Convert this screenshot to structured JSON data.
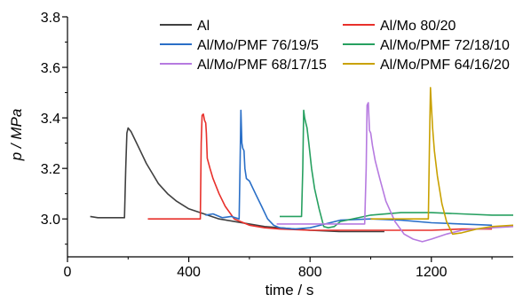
{
  "chart_data": {
    "type": "line",
    "title": "",
    "xlabel": "time / s",
    "ylabel": "p / MPa",
    "xlim": [
      0,
      1470
    ],
    "ylim": [
      2.85,
      3.8
    ],
    "xticks": [
      0,
      400,
      800,
      1200
    ],
    "yticks": [
      3.0,
      3.2,
      3.4,
      3.6,
      3.8
    ],
    "xtick_labels": [
      "0",
      "400",
      "800",
      "1200"
    ],
    "ytick_labels": [
      "3.0",
      "3.2",
      "3.4",
      "3.6",
      "3.8"
    ],
    "grid": false,
    "legend_position": "top",
    "series": [
      {
        "name": "Al",
        "color": "#404040",
        "x": [
          75,
          100,
          140,
          188,
          192,
          196,
          200,
          210,
          220,
          240,
          260,
          280,
          300,
          330,
          360,
          400,
          450,
          500,
          550,
          600,
          650,
          700,
          800,
          900,
          1000,
          1045
        ],
        "y": [
          3.01,
          3.005,
          3.005,
          3.005,
          3.2,
          3.34,
          3.36,
          3.345,
          3.32,
          3.27,
          3.22,
          3.18,
          3.14,
          3.1,
          3.07,
          3.04,
          3.02,
          3.0,
          2.99,
          2.98,
          2.97,
          2.965,
          2.955,
          2.95,
          2.95,
          2.95
        ]
      },
      {
        "name": "Al/Mo 80/20",
        "color": "#e8302b",
        "x": [
          265,
          300,
          350,
          400,
          438,
          441,
          444,
          448,
          452,
          456,
          458,
          461,
          470,
          480,
          500,
          520,
          550,
          600,
          650,
          700,
          800,
          900,
          1000,
          1100,
          1200,
          1300,
          1400
        ],
        "y": [
          3.0,
          3.0,
          3.0,
          3.0,
          3.0,
          3.3,
          3.41,
          3.415,
          3.39,
          3.38,
          3.34,
          3.24,
          3.2,
          3.16,
          3.1,
          3.05,
          3.0,
          2.975,
          2.965,
          2.96,
          2.955,
          2.955,
          2.955,
          2.955,
          2.955,
          2.96,
          2.96
        ]
      },
      {
        "name": "Al/Mo/PMF 76/19/5",
        "color": "#2a6fc7",
        "x": [
          455,
          480,
          510,
          540,
          566,
          569,
          572,
          575,
          578,
          582,
          585,
          590,
          600,
          620,
          640,
          660,
          680,
          700,
          750,
          800,
          900,
          1000,
          1100,
          1200,
          1300,
          1400
        ],
        "y": [
          3.015,
          3.02,
          3.005,
          3.01,
          3.0,
          3.2,
          3.43,
          3.3,
          3.28,
          3.27,
          3.2,
          3.16,
          3.15,
          3.1,
          3.05,
          3.0,
          2.975,
          2.965,
          2.96,
          2.965,
          2.995,
          3.0,
          2.995,
          2.985,
          2.98,
          2.975
        ]
      },
      {
        "name": "Al/Mo/PMF 72/18/10",
        "color": "#27a060",
        "x": [
          700,
          740,
          772,
          776,
          779,
          782,
          786,
          790,
          796,
          805,
          815,
          830,
          845,
          860,
          880,
          900,
          1000,
          1100,
          1200,
          1300,
          1400,
          1470
        ],
        "y": [
          3.01,
          3.01,
          3.01,
          3.2,
          3.43,
          3.4,
          3.38,
          3.36,
          3.3,
          3.2,
          3.12,
          3.04,
          2.97,
          2.965,
          2.97,
          2.99,
          3.015,
          3.025,
          3.025,
          3.02,
          3.015,
          3.015
        ]
      },
      {
        "name": "Al/Mo/PMF 68/17/15",
        "color": "#b67ae0",
        "x": [
          690,
          800,
          900,
          980,
          985,
          988,
          992,
          996,
          1000,
          1006,
          1015,
          1030,
          1050,
          1080,
          1110,
          1140,
          1170,
          1200,
          1250,
          1300,
          1400,
          1470
        ],
        "y": [
          2.98,
          2.98,
          2.98,
          2.98,
          3.2,
          3.45,
          3.46,
          3.35,
          3.34,
          3.29,
          3.23,
          3.16,
          3.07,
          2.99,
          2.94,
          2.92,
          2.91,
          2.92,
          2.94,
          2.955,
          2.965,
          2.97
        ]
      },
      {
        "name": "Al/Mo/PMF 64/16/20",
        "color": "#c9a100",
        "x": [
          1000,
          1050,
          1100,
          1150,
          1190,
          1194,
          1197,
          1200,
          1204,
          1210,
          1220,
          1235,
          1250,
          1270,
          1300,
          1350,
          1400,
          1470
        ],
        "y": [
          3.0,
          3.0,
          3.0,
          3.0,
          3.0,
          3.3,
          3.52,
          3.45,
          3.36,
          3.27,
          3.17,
          3.06,
          2.99,
          2.94,
          2.945,
          2.96,
          2.97,
          2.975
        ]
      }
    ]
  }
}
